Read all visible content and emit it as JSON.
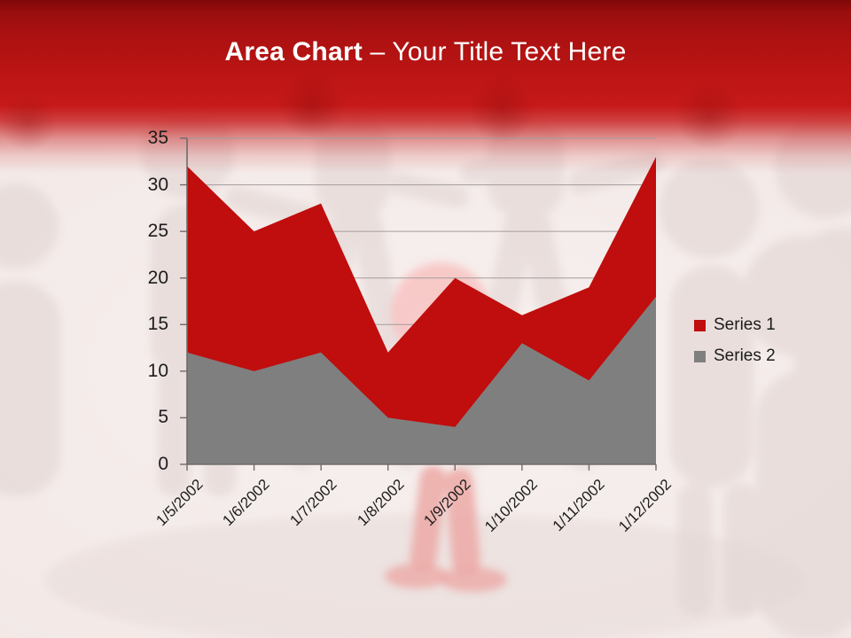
{
  "header": {
    "title_bold": "Area Chart",
    "title_rest": " – Your Title Text Here"
  },
  "chart_data": {
    "type": "area",
    "stacked": false,
    "title": "",
    "xlabel": "",
    "ylabel": "",
    "categories": [
      "1/5/2002",
      "1/6/2002",
      "1/7/2002",
      "1/8/2002",
      "1/9/2002",
      "1/10/2002",
      "1/11/2002",
      "1/12/2002"
    ],
    "series": [
      {
        "name": "Series 1",
        "color": "#C00D0D",
        "values": [
          32,
          25,
          28,
          12,
          20,
          16,
          19,
          33
        ]
      },
      {
        "name": "Series 2",
        "color": "#7F7F7F",
        "values": [
          12,
          10,
          12,
          5,
          4,
          13,
          9,
          18
        ]
      }
    ],
    "ylim": [
      0,
      35
    ],
    "yticks": [
      0,
      5,
      10,
      15,
      20,
      25,
      30,
      35
    ],
    "grid": true,
    "legend_position": "right"
  },
  "style_colors": {
    "banner_red": "#C61919",
    "chart_red": "#C00D0D",
    "chart_gray": "#7F7F7F",
    "gridline": "#A39C9B",
    "axis": "#6F6B6B",
    "label_text": "#1C1C1C"
  }
}
